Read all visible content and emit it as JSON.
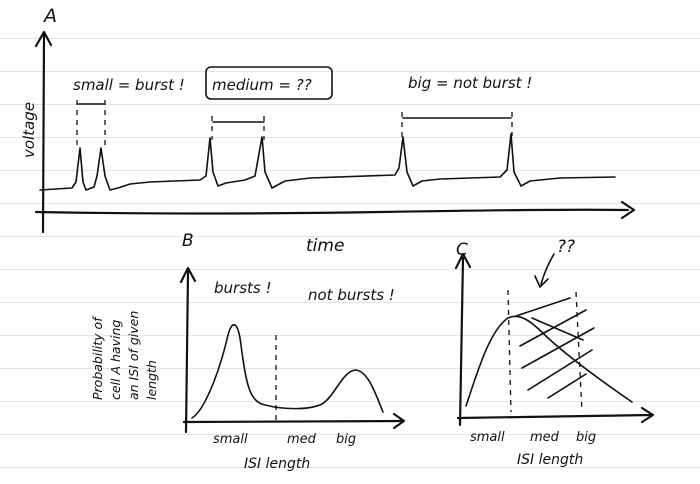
{
  "panel_a": {
    "letter": "A",
    "y_label": "voltage",
    "x_label": "time",
    "annotations": {
      "small": "small = burst !",
      "medium": "medium = ??",
      "big": "big = not burst !"
    }
  },
  "panel_b": {
    "letter": "B",
    "y_label_lines": [
      "Probability of",
      "cell A having",
      "an ISI of given",
      "length"
    ],
    "annotations": {
      "bursts": "bursts !",
      "not_bursts": "not bursts !"
    },
    "x_ticks": [
      "small",
      "med",
      "big"
    ],
    "x_label": "ISI length"
  },
  "panel_c": {
    "letter": "C",
    "annotation": "??",
    "x_ticks": [
      "small",
      "med",
      "big"
    ],
    "x_label": "ISI length"
  }
}
